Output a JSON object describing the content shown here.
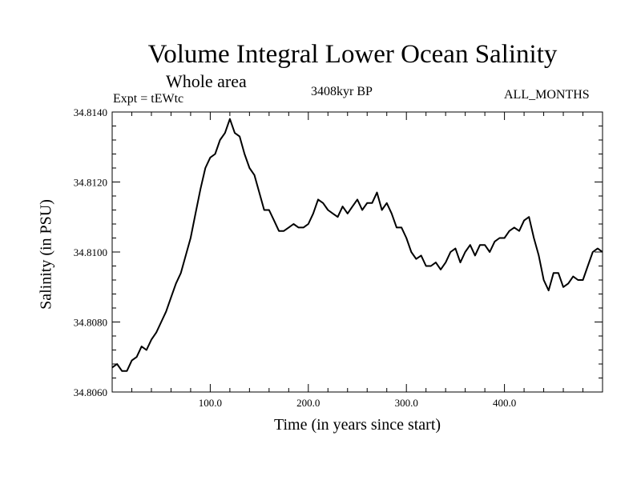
{
  "chart_data": {
    "type": "line",
    "title": "Volume Integral Lower Ocean Salinity",
    "subtitle": "Whole area",
    "left_label": "Expt = tEWtc",
    "center_label": "3408kyr BP",
    "right_label": "ALL_MONTHS",
    "xlabel": "Time (in years since start)",
    "ylabel": "Salinity (in PSU)",
    "xlim": [
      0,
      500
    ],
    "ylim": [
      34.806,
      34.814
    ],
    "x_ticks": [
      100,
      200,
      300,
      400
    ],
    "x_tick_labels": [
      "100.0",
      "200.0",
      "300.0",
      "400.0"
    ],
    "y_ticks": [
      34.806,
      34.808,
      34.81,
      34.812,
      34.814
    ],
    "y_tick_labels": [
      "34.8060",
      "34.8080",
      "34.8100",
      "34.8120",
      "34.8140"
    ],
    "grid": false,
    "series": [
      {
        "name": "Salinity",
        "x": [
          0,
          5,
          10,
          15,
          20,
          25,
          30,
          35,
          40,
          45,
          50,
          55,
          60,
          65,
          70,
          75,
          80,
          85,
          90,
          95,
          100,
          105,
          110,
          115,
          120,
          125,
          130,
          135,
          140,
          145,
          150,
          155,
          160,
          165,
          170,
          175,
          180,
          185,
          190,
          195,
          200,
          205,
          210,
          215,
          220,
          225,
          230,
          235,
          240,
          245,
          250,
          255,
          260,
          265,
          270,
          275,
          280,
          285,
          290,
          295,
          300,
          305,
          310,
          315,
          320,
          325,
          330,
          335,
          340,
          345,
          350,
          355,
          360,
          365,
          370,
          375,
          380,
          385,
          390,
          395,
          400,
          405,
          410,
          415,
          420,
          425,
          430,
          435,
          440,
          445,
          450,
          455,
          460,
          465,
          470,
          475,
          480,
          485,
          490,
          495,
          500
        ],
        "values": [
          34.8067,
          34.8068,
          34.8066,
          34.8066,
          34.8069,
          34.807,
          34.8073,
          34.8072,
          34.8075,
          34.8077,
          34.808,
          34.8083,
          34.8087,
          34.8091,
          34.8094,
          34.8099,
          34.8104,
          34.8111,
          34.8118,
          34.8124,
          34.8127,
          34.8128,
          34.8132,
          34.8134,
          34.8138,
          34.8134,
          34.8133,
          34.8128,
          34.8124,
          34.8122,
          34.8117,
          34.8112,
          34.8112,
          34.8109,
          34.8106,
          34.8106,
          34.8107,
          34.8108,
          34.8107,
          34.8107,
          34.8108,
          34.8111,
          34.8115,
          34.8114,
          34.8112,
          34.8111,
          34.811,
          34.8113,
          34.8111,
          34.8113,
          34.8115,
          34.8112,
          34.8114,
          34.8114,
          34.8117,
          34.8112,
          34.8114,
          34.8111,
          34.8107,
          34.8107,
          34.8104,
          34.81,
          34.8098,
          34.8099,
          34.8096,
          34.8096,
          34.8097,
          34.8095,
          34.8097,
          34.81,
          34.8101,
          34.8097,
          34.81,
          34.8102,
          34.8099,
          34.8102,
          34.8102,
          34.81,
          34.8103,
          34.8104,
          34.8104,
          34.8106,
          34.8107,
          34.8106,
          34.8109,
          34.811,
          34.8104,
          34.8099,
          34.8092,
          34.8089,
          34.8094,
          34.8094,
          34.809,
          34.8091,
          34.8093,
          34.8092,
          34.8092,
          34.8096,
          34.81,
          34.8101,
          34.81
        ]
      }
    ]
  }
}
